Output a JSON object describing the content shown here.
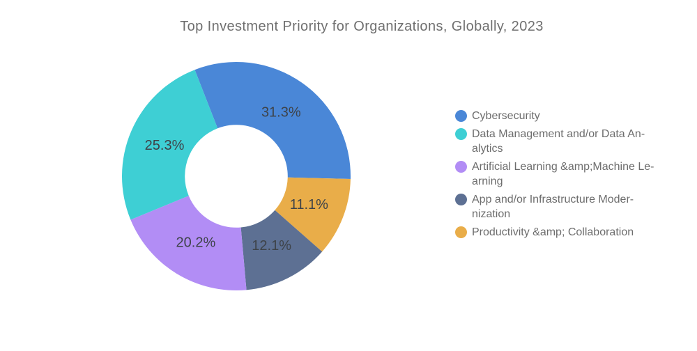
{
  "chart_data": {
    "type": "pie",
    "variant": "donut",
    "title": "Top Investment Priority for Organizations, Globally, 2023",
    "value_unit": "%",
    "series": [
      {
        "label": "Cybersecurity",
        "value": 31.3,
        "color": "#4a87d7",
        "legend_label": "Cybersecurity"
      },
      {
        "label": "Data Management and/or Data Analytics",
        "value": 25.3,
        "color": "#3ecfd4",
        "legend_label": "Data Management and/or Data An-\nalytics"
      },
      {
        "label": "Artificial Learning &amp;Machine Learning",
        "value": 20.2,
        "color": "#b28df5",
        "legend_label": "Artificial Learning &amp;Machine Le-\narning"
      },
      {
        "label": "App and/or Infrastructure Modernization",
        "value": 12.1,
        "color": "#5d7093",
        "legend_label": "App and/or Infrastructure Moder-\nnization"
      },
      {
        "label": "Productivity &amp; Collaboration",
        "value": 11.1,
        "color": "#e9ad49",
        "legend_label": "Productivity &amp; Collaboration"
      }
    ],
    "data_labels": [
      "31.3%",
      "25.3%",
      "20.2%",
      "12.1%",
      "11.1%"
    ],
    "layout_hints": {
      "start_angle_deg": -21.3,
      "clockwise_slice_order": [
        0,
        4,
        3,
        2,
        1
      ],
      "inner_radius_pct": 45,
      "legend_position": "right",
      "data_label_position": "inside"
    }
  },
  "colors": {
    "background": "#ffffff",
    "title_text": "#6f6f6f",
    "legend_text": "#6d6d6d",
    "percent_label_text": "#3e4349"
  }
}
